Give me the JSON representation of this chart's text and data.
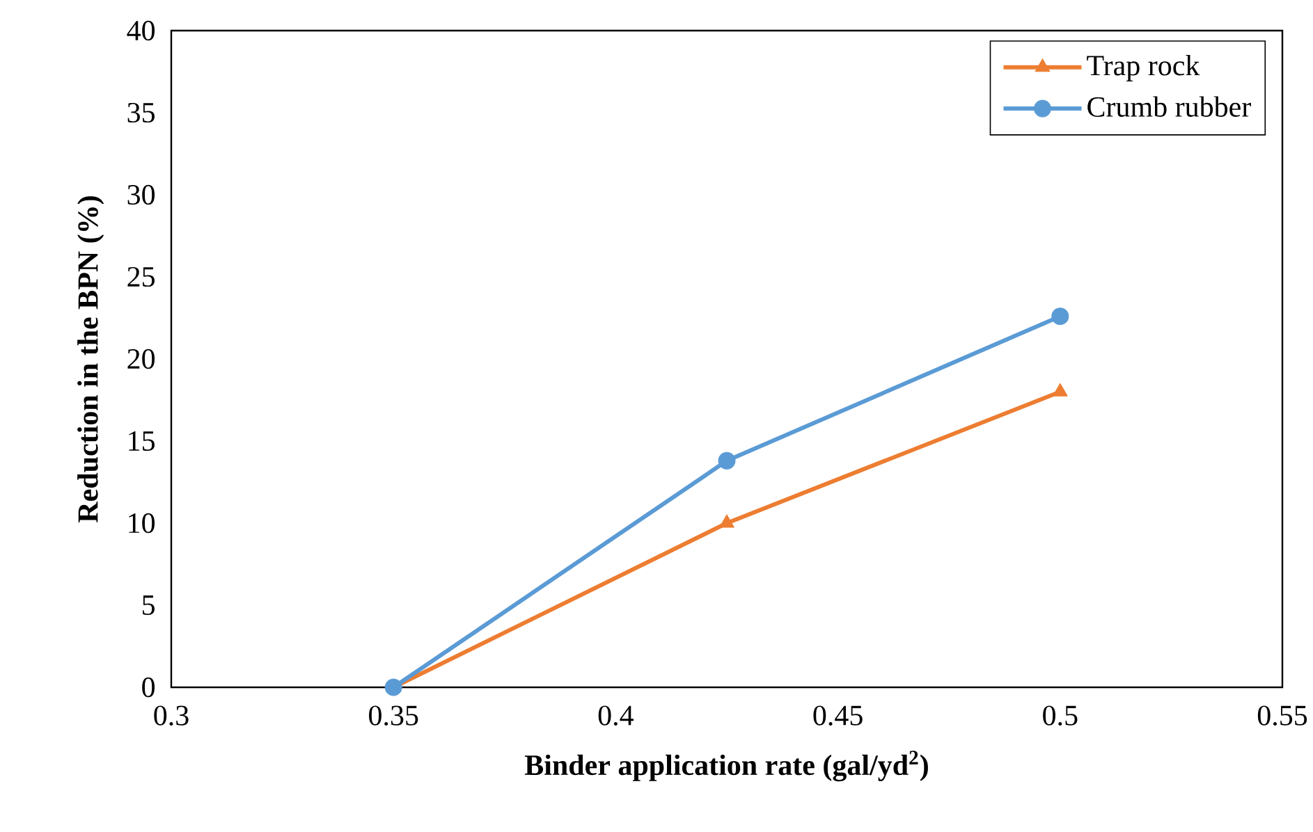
{
  "chart_data": {
    "type": "line",
    "xlabel": "Binder application rate (gal/yd$^{2}$)",
    "ylabel": "Reduction in the BPN (%)",
    "xlim": [
      0.3,
      0.55
    ],
    "xticks": [
      0.3,
      0.35,
      0.4,
      0.45,
      0.5,
      0.55
    ],
    "ylim": [
      0,
      40
    ],
    "yticks": [
      0,
      5,
      10,
      15,
      20,
      25,
      30,
      35,
      40
    ],
    "x": [
      0.35,
      0.425,
      0.5
    ],
    "legend": "top right",
    "grid": false,
    "series": [
      {
        "name": "Trap rock",
        "color": "#ed7d31",
        "marker": "triangle",
        "values": [
          0,
          10,
          18
        ]
      },
      {
        "name": "Crumb rubber",
        "color": "#5b9bd5",
        "marker": "circle",
        "values": [
          0,
          13.8,
          22.6
        ]
      }
    ]
  }
}
